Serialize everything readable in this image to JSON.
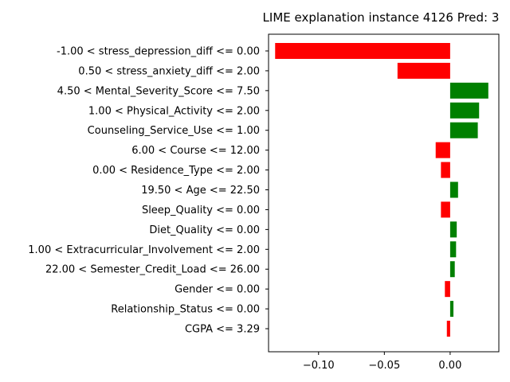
{
  "chart_data": {
    "type": "bar",
    "orientation": "horizontal",
    "title": "LIME explanation instance 4126 Pred: 3",
    "xlabel": "",
    "ylabel": "",
    "xlim": [
      -0.138,
      0.037
    ],
    "xticks": [
      -0.1,
      -0.05,
      0.0
    ],
    "xtick_labels": [
      "−0.10",
      "−0.05",
      "0.00"
    ],
    "grid": false,
    "colors": {
      "positive": "#008000",
      "negative": "#ff0000"
    },
    "categories": [
      "-1.00 < stress_depression_diff <= 0.00",
      "0.50 < stress_anxiety_diff <= 2.00",
      "4.50 < Mental_Severity_Score <= 7.50",
      "1.00 < Physical_Activity <= 2.00",
      "Counseling_Service_Use <= 1.00",
      "6.00 < Course <= 12.00",
      "0.00 < Residence_Type <= 2.00",
      "19.50 < Age <= 22.50",
      "Sleep_Quality <= 0.00",
      "Diet_Quality <= 0.00",
      "1.00 < Extracurricular_Involvement <= 2.00",
      "22.00 < Semester_Credit_Load <= 26.00",
      "Gender <= 0.00",
      "Relationship_Status <= 0.00",
      "CGPA <= 3.29"
    ],
    "values": [
      -0.133,
      -0.04,
      0.029,
      0.022,
      0.021,
      -0.011,
      -0.007,
      0.006,
      -0.007,
      0.005,
      0.0045,
      0.0035,
      -0.004,
      0.0025,
      -0.0025
    ]
  }
}
